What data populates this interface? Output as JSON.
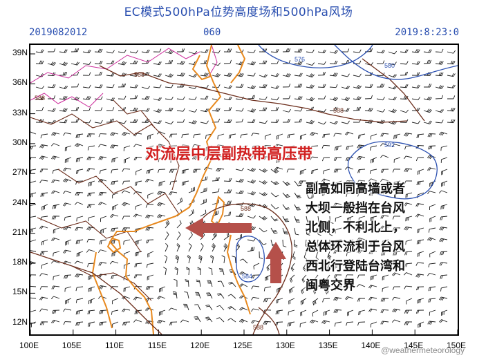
{
  "header": {
    "title": "EC模式500hPa位势高度场和500hPa风场",
    "init_time": "2019082012",
    "forecast_hour": "060",
    "valid_time": "2019:8:23:0"
  },
  "map": {
    "lat_labels": [
      "39N",
      "36N",
      "33N",
      "30N",
      "27N",
      "24N",
      "21N",
      "18N",
      "15N",
      "12N"
    ],
    "lon_labels": [
      "100E",
      "105E",
      "110E",
      "115E",
      "120E",
      "125E",
      "130E",
      "135E",
      "140E",
      "145E",
      "150E"
    ],
    "contours": {
      "blue": [
        "576",
        "580",
        "592",
        "584"
      ],
      "brown": [
        "588",
        "588",
        "588",
        "588",
        "588",
        "588"
      ]
    },
    "colors": {
      "geopotential_blue": "#2a4fb0",
      "subtropical_brown": "#6b2c1a",
      "coastline_orange": "#e8891e",
      "province_magenta": "#cc2a9a",
      "arrow_red": "#b5504a",
      "wind_barbs": "#1a1a1a"
    }
  },
  "annotations": {
    "subtropical_high_label": "对流层中层副热带高压带",
    "note_lines": [
      "副高如同高墙或者",
      "大坝一般挡在台风",
      "北侧，不利北上，",
      "总体环流利于台风",
      "西北行登陆台湾和",
      "闽粤交界"
    ],
    "watermark": "@weathermeteorology"
  }
}
